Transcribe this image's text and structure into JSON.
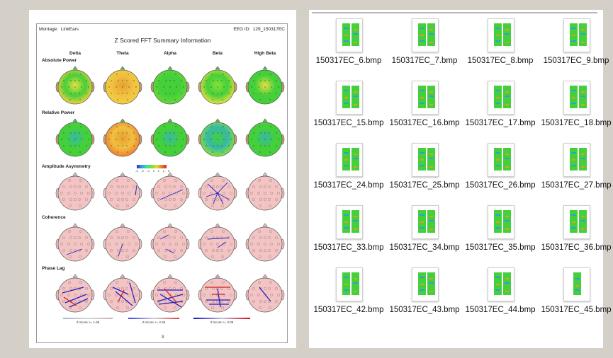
{
  "report": {
    "montage_label": "Montage:",
    "montage_value": "LinkEars",
    "eeg_id_label": "EEG ID:",
    "eeg_id_value": "129_150317EC",
    "title": "Z Scored FFT Summary Information",
    "bands": [
      "Delta",
      "Theta",
      "Alpha",
      "Beta",
      "High Beta"
    ],
    "sections": [
      "Absolute Power",
      "Relative Power",
      "Amplitude Asymmetry",
      "Coherence",
      "Phase Lag"
    ],
    "colorbar_ticks": [
      "-3",
      "-2",
      "-1",
      "0",
      "1",
      "2",
      "3"
    ],
    "legend_labels": [
      "Z-Score >= 1.96",
      "Z-Score >= 2.58",
      "Z-Score >= 3.09"
    ],
    "page_number": "3",
    "colors": {
      "green": "#44d03a",
      "yellow": "#f0d040",
      "pink": "#f2c4c4",
      "blue": "#2020c0",
      "red": "#d02020"
    }
  },
  "files": [
    "150317EC_6.bmp",
    "150317EC_7.bmp",
    "150317EC_8.bmp",
    "150317EC_9.bmp",
    "150317EC_15.bmp",
    "150317EC_16.bmp",
    "150317EC_17.bmp",
    "150317EC_18.bmp",
    "150317EC_24.bmp",
    "150317EC_25.bmp",
    "150317EC_26.bmp",
    "150317EC_27.bmp",
    "150317EC_33.bmp",
    "150317EC_34.bmp",
    "150317EC_35.bmp",
    "150317EC_36.bmp",
    "150317EC_42.bmp",
    "150317EC_43.bmp",
    "150317EC_44.bmp",
    "150317EC_45.bmp"
  ]
}
